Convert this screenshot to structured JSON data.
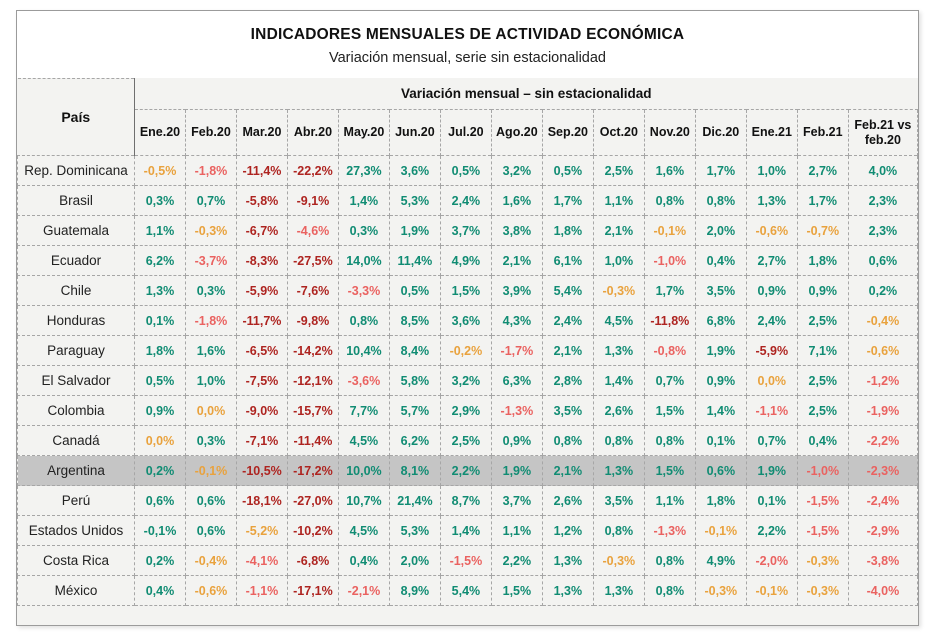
{
  "title": "INDICADORES MENSUALES DE ACTIVIDAD ECONÓMICA",
  "subtitle": "Variación mensual, serie sin estacionalidad",
  "table": {
    "country_col_header": "País",
    "group_header": "Variación mensual – sin estacionalidad",
    "columns": [
      "Ene.20",
      "Feb.20",
      "Mar.20",
      "Abr.20",
      "May.20",
      "Jun.20",
      "Jul.20",
      "Ago.20",
      "Sep.20",
      "Oct.20",
      "Nov.20",
      "Dic.20",
      "Ene.21",
      "Feb.21",
      "Feb.21 vs feb.20"
    ],
    "rows": [
      {
        "country": "Rep. Dominicana",
        "highlight": false,
        "values": [
          "-0,5%",
          "-1,8%",
          "-11,4%",
          "-22,2%",
          "27,3%",
          "3,6%",
          "0,5%",
          "3,2%",
          "0,5%",
          "2,5%",
          "1,6%",
          "1,7%",
          "1,0%",
          "2,7%",
          "4,0%"
        ],
        "colors": [
          "orange",
          "red",
          "darkred",
          "darkred",
          "green",
          "green",
          "green",
          "green",
          "green",
          "green",
          "green",
          "green",
          "green",
          "green",
          "green"
        ]
      },
      {
        "country": "Brasil",
        "highlight": false,
        "values": [
          "0,3%",
          "0,7%",
          "-5,8%",
          "-9,1%",
          "1,4%",
          "5,3%",
          "2,4%",
          "1,6%",
          "1,7%",
          "1,1%",
          "0,8%",
          "0,8%",
          "1,3%",
          "1,7%",
          "2,3%"
        ],
        "colors": [
          "green",
          "green",
          "darkred",
          "darkred",
          "green",
          "green",
          "green",
          "green",
          "green",
          "green",
          "green",
          "green",
          "green",
          "green",
          "green"
        ]
      },
      {
        "country": "Guatemala",
        "highlight": false,
        "values": [
          "1,1%",
          "-0,3%",
          "-6,7%",
          "-4,6%",
          "0,3%",
          "1,9%",
          "3,7%",
          "3,8%",
          "1,8%",
          "2,1%",
          "-0,1%",
          "2,0%",
          "-0,6%",
          "-0,7%",
          "2,3%"
        ],
        "colors": [
          "green",
          "orange",
          "darkred",
          "red",
          "green",
          "green",
          "green",
          "green",
          "green",
          "green",
          "orange",
          "green",
          "orange",
          "orange",
          "green"
        ]
      },
      {
        "country": "Ecuador",
        "highlight": false,
        "values": [
          "6,2%",
          "-3,7%",
          "-8,3%",
          "-27,5%",
          "14,0%",
          "11,4%",
          "4,9%",
          "2,1%",
          "6,1%",
          "1,0%",
          "-1,0%",
          "0,4%",
          "2,7%",
          "1,8%",
          "0,6%"
        ],
        "colors": [
          "green",
          "red",
          "darkred",
          "darkred",
          "green",
          "green",
          "green",
          "green",
          "green",
          "green",
          "red",
          "green",
          "green",
          "green",
          "green"
        ]
      },
      {
        "country": "Chile",
        "highlight": false,
        "values": [
          "1,3%",
          "0,3%",
          "-5,9%",
          "-7,6%",
          "-3,3%",
          "0,5%",
          "1,5%",
          "3,9%",
          "5,4%",
          "-0,3%",
          "1,7%",
          "3,5%",
          "0,9%",
          "0,9%",
          "0,2%"
        ],
        "colors": [
          "green",
          "green",
          "darkred",
          "darkred",
          "red",
          "green",
          "green",
          "green",
          "green",
          "orange",
          "green",
          "green",
          "green",
          "green",
          "green"
        ]
      },
      {
        "country": "Honduras",
        "highlight": false,
        "values": [
          "0,1%",
          "-1,8%",
          "-11,7%",
          "-9,8%",
          "0,8%",
          "8,5%",
          "3,6%",
          "4,3%",
          "2,4%",
          "4,5%",
          "-11,8%",
          "6,8%",
          "2,4%",
          "2,5%",
          "-0,4%"
        ],
        "colors": [
          "green",
          "red",
          "darkred",
          "darkred",
          "green",
          "green",
          "green",
          "green",
          "green",
          "green",
          "darkred",
          "green",
          "green",
          "green",
          "orange"
        ]
      },
      {
        "country": "Paraguay",
        "highlight": false,
        "values": [
          "1,8%",
          "1,6%",
          "-6,5%",
          "-14,2%",
          "10,4%",
          "8,4%",
          "-0,2%",
          "-1,7%",
          "2,1%",
          "1,3%",
          "-0,8%",
          "1,9%",
          "-5,9%",
          "7,1%",
          "-0,6%"
        ],
        "colors": [
          "green",
          "green",
          "darkred",
          "darkred",
          "green",
          "green",
          "orange",
          "red",
          "green",
          "green",
          "red",
          "green",
          "darkred",
          "green",
          "orange"
        ]
      },
      {
        "country": "El Salvador",
        "highlight": false,
        "values": [
          "0,5%",
          "1,0%",
          "-7,5%",
          "-12,1%",
          "-3,6%",
          "5,8%",
          "3,2%",
          "6,3%",
          "2,8%",
          "1,4%",
          "0,7%",
          "0,9%",
          "0,0%",
          "2,5%",
          "-1,2%"
        ],
        "colors": [
          "green",
          "green",
          "darkred",
          "darkred",
          "red",
          "green",
          "green",
          "green",
          "green",
          "green",
          "green",
          "green",
          "orange",
          "green",
          "red"
        ]
      },
      {
        "country": "Colombia",
        "highlight": false,
        "values": [
          "0,9%",
          "0,0%",
          "-9,0%",
          "-15,7%",
          "7,7%",
          "5,7%",
          "2,9%",
          "-1,3%",
          "3,5%",
          "2,6%",
          "1,5%",
          "1,4%",
          "-1,1%",
          "2,5%",
          "-1,9%"
        ],
        "colors": [
          "green",
          "orange",
          "darkred",
          "darkred",
          "green",
          "green",
          "green",
          "red",
          "green",
          "green",
          "green",
          "green",
          "red",
          "green",
          "red"
        ]
      },
      {
        "country": "Canadá",
        "highlight": false,
        "values": [
          "0,0%",
          "0,3%",
          "-7,1%",
          "-11,4%",
          "4,5%",
          "6,2%",
          "2,5%",
          "0,9%",
          "0,8%",
          "0,8%",
          "0,8%",
          "0,1%",
          "0,7%",
          "0,4%",
          "-2,2%"
        ],
        "colors": [
          "orange",
          "green",
          "darkred",
          "darkred",
          "green",
          "green",
          "green",
          "green",
          "green",
          "green",
          "green",
          "green",
          "green",
          "green",
          "red"
        ]
      },
      {
        "country": "Argentina",
        "highlight": true,
        "values": [
          "0,2%",
          "-0,1%",
          "-10,5%",
          "-17,2%",
          "10,0%",
          "8,1%",
          "2,2%",
          "1,9%",
          "2,1%",
          "1,3%",
          "1,5%",
          "0,6%",
          "1,9%",
          "-1,0%",
          "-2,3%"
        ],
        "colors": [
          "green",
          "orange",
          "darkred",
          "darkred",
          "green",
          "green",
          "green",
          "green",
          "green",
          "green",
          "green",
          "green",
          "green",
          "red",
          "red"
        ]
      },
      {
        "country": "Perú",
        "highlight": false,
        "values": [
          "0,6%",
          "0,6%",
          "-18,1%",
          "-27,0%",
          "10,7%",
          "21,4%",
          "8,7%",
          "3,7%",
          "2,6%",
          "3,5%",
          "1,1%",
          "1,8%",
          "0,1%",
          "-1,5%",
          "-2,4%"
        ],
        "colors": [
          "green",
          "green",
          "darkred",
          "darkred",
          "green",
          "green",
          "green",
          "green",
          "green",
          "green",
          "green",
          "green",
          "green",
          "red",
          "red"
        ]
      },
      {
        "country": "Estados Unidos",
        "highlight": false,
        "values": [
          "-0,1%",
          "0,6%",
          "-5,2%",
          "-10,2%",
          "4,5%",
          "5,3%",
          "1,4%",
          "1,1%",
          "1,2%",
          "0,8%",
          "-1,3%",
          "-0,1%",
          "2,2%",
          "-1,5%",
          "-2,9%"
        ],
        "colors": [
          "green",
          "green",
          "orange",
          "darkred",
          "green",
          "green",
          "green",
          "green",
          "green",
          "green",
          "red",
          "orange",
          "green",
          "red",
          "red"
        ]
      },
      {
        "country": "Costa Rica",
        "highlight": false,
        "values": [
          "0,2%",
          "-0,4%",
          "-4,1%",
          "-6,8%",
          "0,4%",
          "2,0%",
          "-1,5%",
          "2,2%",
          "1,3%",
          "-0,3%",
          "0,8%",
          "4,9%",
          "-2,0%",
          "-0,3%",
          "-3,8%"
        ],
        "colors": [
          "green",
          "orange",
          "red",
          "darkred",
          "green",
          "green",
          "red",
          "green",
          "green",
          "orange",
          "green",
          "green",
          "red",
          "orange",
          "red"
        ]
      },
      {
        "country": "México",
        "highlight": false,
        "values": [
          "0,4%",
          "-0,6%",
          "-1,1%",
          "-17,1%",
          "-2,1%",
          "8,9%",
          "5,4%",
          "1,5%",
          "1,3%",
          "1,3%",
          "0,8%",
          "-0,3%",
          "-0,1%",
          "-0,3%",
          "-4,0%"
        ],
        "colors": [
          "green",
          "orange",
          "red",
          "darkred",
          "red",
          "green",
          "green",
          "green",
          "green",
          "green",
          "green",
          "orange",
          "orange",
          "orange",
          "red"
        ]
      }
    ]
  },
  "value_colors": {
    "green": "#108c73",
    "orange": "#e9a23d",
    "red": "#ea6260",
    "darkred": "#ae2420"
  },
  "style_colors": {
    "table_background": "#f3f3f1",
    "highlight_row_background": "#c5c5c5",
    "border_dashed": "#a6a6a6",
    "card_border": "#9b9b9b"
  },
  "chart_data": {
    "type": "table",
    "title": "INDICADORES MENSUALES DE ACTIVIDAD ECONÓMICA",
    "subtitle": "Variación mensual, serie sin estacionalidad",
    "group_header": "Variación mensual – sin estacionalidad",
    "unit": "percent",
    "categories": [
      "Ene.20",
      "Feb.20",
      "Mar.20",
      "Abr.20",
      "May.20",
      "Jun.20",
      "Jul.20",
      "Ago.20",
      "Sep.20",
      "Oct.20",
      "Nov.20",
      "Dic.20",
      "Ene.21",
      "Feb.21",
      "Feb.21 vs feb.20"
    ],
    "series": [
      {
        "name": "Rep. Dominicana",
        "values": [
          -0.5,
          -1.8,
          -11.4,
          -22.2,
          27.3,
          3.6,
          0.5,
          3.2,
          0.5,
          2.5,
          1.6,
          1.7,
          1.0,
          2.7,
          4.0
        ]
      },
      {
        "name": "Brasil",
        "values": [
          0.3,
          0.7,
          -5.8,
          -9.1,
          1.4,
          5.3,
          2.4,
          1.6,
          1.7,
          1.1,
          0.8,
          0.8,
          1.3,
          1.7,
          2.3
        ]
      },
      {
        "name": "Guatemala",
        "values": [
          1.1,
          -0.3,
          -6.7,
          -4.6,
          0.3,
          1.9,
          3.7,
          3.8,
          1.8,
          2.1,
          -0.1,
          2.0,
          -0.6,
          -0.7,
          2.3
        ]
      },
      {
        "name": "Ecuador",
        "values": [
          6.2,
          -3.7,
          -8.3,
          -27.5,
          14.0,
          11.4,
          4.9,
          2.1,
          6.1,
          1.0,
          -1.0,
          0.4,
          2.7,
          1.8,
          0.6
        ]
      },
      {
        "name": "Chile",
        "values": [
          1.3,
          0.3,
          -5.9,
          -7.6,
          -3.3,
          0.5,
          1.5,
          3.9,
          5.4,
          -0.3,
          1.7,
          3.5,
          0.9,
          0.9,
          0.2
        ]
      },
      {
        "name": "Honduras",
        "values": [
          0.1,
          -1.8,
          -11.7,
          -9.8,
          0.8,
          8.5,
          3.6,
          4.3,
          2.4,
          4.5,
          -11.8,
          6.8,
          2.4,
          2.5,
          -0.4
        ]
      },
      {
        "name": "Paraguay",
        "values": [
          1.8,
          1.6,
          -6.5,
          -14.2,
          10.4,
          8.4,
          -0.2,
          -1.7,
          2.1,
          1.3,
          -0.8,
          1.9,
          -5.9,
          7.1,
          -0.6
        ]
      },
      {
        "name": "El Salvador",
        "values": [
          0.5,
          1.0,
          -7.5,
          -12.1,
          -3.6,
          5.8,
          3.2,
          6.3,
          2.8,
          1.4,
          0.7,
          0.9,
          0.0,
          2.5,
          -1.2
        ]
      },
      {
        "name": "Colombia",
        "values": [
          0.9,
          0.0,
          -9.0,
          -15.7,
          7.7,
          5.7,
          2.9,
          -1.3,
          3.5,
          2.6,
          1.5,
          1.4,
          -1.1,
          2.5,
          -1.9
        ]
      },
      {
        "name": "Canadá",
        "values": [
          0.0,
          0.3,
          -7.1,
          -11.4,
          4.5,
          6.2,
          2.5,
          0.9,
          0.8,
          0.8,
          0.8,
          0.1,
          0.7,
          0.4,
          -2.2
        ]
      },
      {
        "name": "Argentina",
        "values": [
          0.2,
          -0.1,
          -10.5,
          -17.2,
          10.0,
          8.1,
          2.2,
          1.9,
          2.1,
          1.3,
          1.5,
          0.6,
          1.9,
          -1.0,
          -2.3
        ]
      },
      {
        "name": "Perú",
        "values": [
          0.6,
          0.6,
          -18.1,
          -27.0,
          10.7,
          21.4,
          8.7,
          3.7,
          2.6,
          3.5,
          1.1,
          1.8,
          0.1,
          -1.5,
          -2.4
        ]
      },
      {
        "name": "Estados Unidos",
        "values": [
          -0.1,
          0.6,
          -5.2,
          -10.2,
          4.5,
          5.3,
          1.4,
          1.1,
          1.2,
          0.8,
          -1.3,
          -0.1,
          2.2,
          -1.5,
          -2.9
        ]
      },
      {
        "name": "Costa Rica",
        "values": [
          0.2,
          -0.4,
          -4.1,
          -6.8,
          0.4,
          2.0,
          -1.5,
          2.2,
          1.3,
          -0.3,
          0.8,
          4.9,
          -2.0,
          -0.3,
          -3.8
        ]
      },
      {
        "name": "México",
        "values": [
          0.4,
          -0.6,
          -1.1,
          -17.1,
          -2.1,
          8.9,
          5.4,
          1.5,
          1.3,
          1.3,
          0.8,
          -0.3,
          -0.1,
          -0.3,
          -4.0
        ]
      }
    ],
    "highlighted_row": "Argentina",
    "color_legend": {
      "green": "positive variation",
      "orange": "near-zero / slightly negative variation",
      "red": "moderately negative variation",
      "darkred": "strongly negative variation"
    }
  }
}
